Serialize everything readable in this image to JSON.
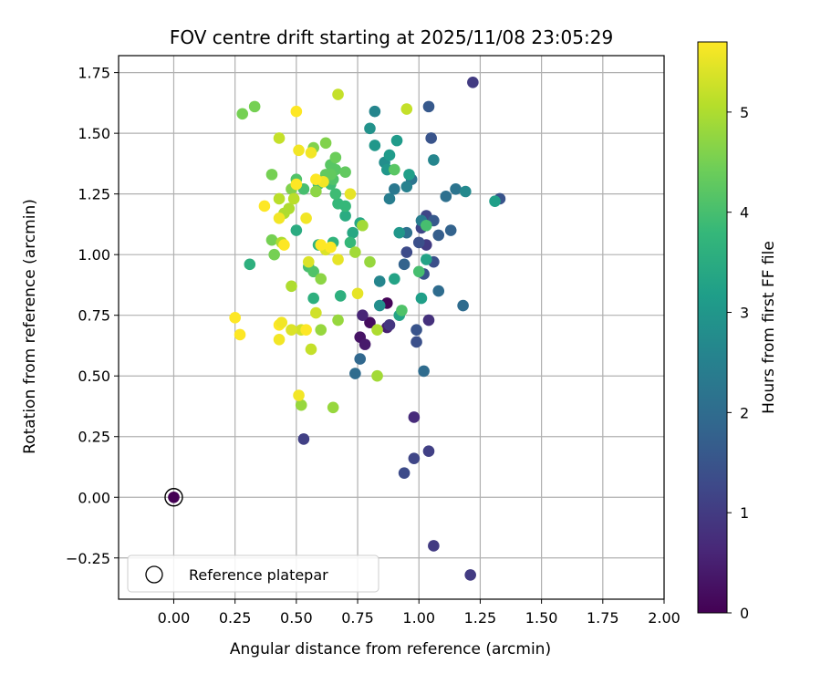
{
  "chart_data": {
    "type": "scatter",
    "title": "FOV centre drift starting at 2025/11/08 23:05:29",
    "xlabel": "Angular distance from reference (arcmin)",
    "ylabel": "Rotation from reference (arcmin)",
    "xlim": [
      -0.225,
      2.0
    ],
    "ylim": [
      -0.42,
      1.82
    ],
    "xticks": [
      0.0,
      0.25,
      0.5,
      0.75,
      1.0,
      1.25,
      1.5,
      1.75,
      2.0
    ],
    "xtick_labels": [
      "0.00",
      "0.25",
      "0.50",
      "0.75",
      "1.00",
      "1.25",
      "1.50",
      "1.75",
      "2.00"
    ],
    "yticks": [
      -0.25,
      0.0,
      0.25,
      0.5,
      0.75,
      1.0,
      1.25,
      1.5,
      1.75
    ],
    "ytick_labels": [
      "−0.25",
      "0.00",
      "0.25",
      "0.50",
      "0.75",
      "1.00",
      "1.25",
      "1.50",
      "1.75"
    ],
    "grid": true,
    "legend": {
      "position": "lower-left",
      "entries": [
        "Reference platepar"
      ]
    },
    "reference_point": {
      "x": 0.0,
      "y": 0.0
    },
    "colorbar": {
      "label": "Hours from first FF file",
      "range": [
        0,
        5.7
      ],
      "ticks": [
        0,
        1,
        2,
        3,
        4,
        5
      ],
      "tick_labels": [
        "0",
        "1",
        "2",
        "3",
        "4",
        "5"
      ],
      "colormap": "viridis"
    },
    "color_stops": [
      "#440154",
      "#482878",
      "#3e4989",
      "#31688e",
      "#26828e",
      "#1f9e89",
      "#35b779",
      "#6ece58",
      "#b5de2b",
      "#fde725"
    ],
    "points": [
      [
        0.0,
        0.0,
        0.0
      ],
      [
        0.87,
        0.8,
        0.05
      ],
      [
        0.8,
        0.72,
        0.2
      ],
      [
        0.76,
        0.66,
        0.3
      ],
      [
        0.78,
        0.63,
        0.4
      ],
      [
        0.87,
        0.7,
        0.5
      ],
      [
        0.77,
        0.75,
        0.6
      ],
      [
        0.98,
        0.33,
        0.7
      ],
      [
        1.04,
        0.73,
        0.8
      ],
      [
        0.88,
        0.71,
        0.9
      ],
      [
        1.03,
        1.04,
        1.0
      ],
      [
        1.22,
        1.71,
        1.0
      ],
      [
        1.06,
        -0.2,
        1.0
      ],
      [
        1.21,
        -0.32,
        1.0
      ],
      [
        0.53,
        0.24,
        1.1
      ],
      [
        1.04,
        0.19,
        1.1
      ],
      [
        0.98,
        0.16,
        1.2
      ],
      [
        0.94,
        0.1,
        1.3
      ],
      [
        1.01,
        1.11,
        1.2
      ],
      [
        1.03,
        1.16,
        1.2
      ],
      [
        0.95,
        1.01,
        1.3
      ],
      [
        1.0,
        1.05,
        1.4
      ],
      [
        0.99,
        0.64,
        1.4
      ],
      [
        0.99,
        0.69,
        1.5
      ],
      [
        1.06,
        0.97,
        1.4
      ],
      [
        1.02,
        0.92,
        1.5
      ],
      [
        1.05,
        1.48,
        1.5
      ],
      [
        1.04,
        1.61,
        1.6
      ],
      [
        1.33,
        1.23,
        1.5
      ],
      [
        1.06,
        1.14,
        1.6
      ],
      [
        1.08,
        1.08,
        1.7
      ],
      [
        0.94,
        0.96,
        1.8
      ],
      [
        1.13,
        1.1,
        1.8
      ],
      [
        0.76,
        0.57,
        1.9
      ],
      [
        0.74,
        0.51,
        2.0
      ],
      [
        1.08,
        0.85,
        2.0
      ],
      [
        1.18,
        0.79,
        2.0
      ],
      [
        1.02,
        0.52,
        2.0
      ],
      [
        1.11,
        1.24,
        2.1
      ],
      [
        1.15,
        1.27,
        2.2
      ],
      [
        0.95,
        1.09,
        2.1
      ],
      [
        0.97,
        1.31,
        2.2
      ],
      [
        0.9,
        1.27,
        2.3
      ],
      [
        0.88,
        1.23,
        2.4
      ],
      [
        1.01,
        1.14,
        2.4
      ],
      [
        0.95,
        1.28,
        2.5
      ],
      [
        0.82,
        1.59,
        2.6
      ],
      [
        0.84,
        0.89,
        2.6
      ],
      [
        1.06,
        1.39,
        2.6
      ],
      [
        1.19,
        1.26,
        2.7
      ],
      [
        0.84,
        0.79,
        2.8
      ],
      [
        0.86,
        1.38,
        2.8
      ],
      [
        0.8,
        1.52,
        2.9
      ],
      [
        0.87,
        1.35,
        3.0
      ],
      [
        0.92,
        1.09,
        3.0
      ],
      [
        0.82,
        1.45,
        3.0
      ],
      [
        0.88,
        1.41,
        3.1
      ],
      [
        0.91,
        1.47,
        3.1
      ],
      [
        0.96,
        1.33,
        3.2
      ],
      [
        1.31,
        1.22,
        3.2
      ],
      [
        1.01,
        0.82,
        3.2
      ],
      [
        0.9,
        0.9,
        3.3
      ],
      [
        0.92,
        0.75,
        3.3
      ],
      [
        1.03,
        0.98,
        3.3
      ],
      [
        0.76,
        1.13,
        3.4
      ],
      [
        0.73,
        1.09,
        3.4
      ],
      [
        0.7,
        1.16,
        3.5
      ],
      [
        0.5,
        1.1,
        3.5
      ],
      [
        0.31,
        0.96,
        3.6
      ],
      [
        0.68,
        0.83,
        3.6
      ],
      [
        0.57,
        0.82,
        3.6
      ],
      [
        0.59,
        1.04,
        3.7
      ],
      [
        0.65,
        1.05,
        3.7
      ],
      [
        0.72,
        1.05,
        3.8
      ],
      [
        0.7,
        1.2,
        3.8
      ],
      [
        0.67,
        1.21,
        3.8
      ],
      [
        0.66,
        1.25,
        3.9
      ],
      [
        0.64,
        1.29,
        3.9
      ],
      [
        0.59,
        1.29,
        4.0
      ],
      [
        0.53,
        1.27,
        4.0
      ],
      [
        0.5,
        1.31,
        4.1
      ],
      [
        0.65,
        1.31,
        4.1
      ],
      [
        0.66,
        1.35,
        4.2
      ],
      [
        0.64,
        1.37,
        4.2
      ],
      [
        0.64,
        1.33,
        4.3
      ],
      [
        0.7,
        1.34,
        4.3
      ],
      [
        0.55,
        0.95,
        4.0
      ],
      [
        0.57,
        0.93,
        4.1
      ],
      [
        1.0,
        0.93,
        4.0
      ],
      [
        1.03,
        1.12,
        4.0
      ],
      [
        0.93,
        0.77,
        4.1
      ],
      [
        0.9,
        1.35,
        4.2
      ],
      [
        0.62,
        1.33,
        4.3
      ],
      [
        0.66,
        1.4,
        4.4
      ],
      [
        0.28,
        1.58,
        4.5
      ],
      [
        0.33,
        1.61,
        4.5
      ],
      [
        0.4,
        1.06,
        4.5
      ],
      [
        0.41,
        1.0,
        4.5
      ],
      [
        0.4,
        1.33,
        4.5
      ],
      [
        0.48,
        1.27,
        4.6
      ],
      [
        0.62,
        1.46,
        4.6
      ],
      [
        0.57,
        1.44,
        4.6
      ],
      [
        0.58,
        1.26,
        4.7
      ],
      [
        0.6,
        0.9,
        4.7
      ],
      [
        0.65,
        0.37,
        4.8
      ],
      [
        0.52,
        0.38,
        4.8
      ],
      [
        0.6,
        0.69,
        4.8
      ],
      [
        0.67,
        0.73,
        4.8
      ],
      [
        0.83,
        0.5,
        4.9
      ],
      [
        0.8,
        0.97,
        4.8
      ],
      [
        0.74,
        1.01,
        4.9
      ],
      [
        0.77,
        1.12,
        4.9
      ],
      [
        0.83,
        0.69,
        5.0
      ],
      [
        0.48,
        0.87,
        5.0
      ],
      [
        0.44,
        1.05,
        5.0
      ],
      [
        0.45,
        1.17,
        5.0
      ],
      [
        0.47,
        1.19,
        5.0
      ],
      [
        0.49,
        1.23,
        5.1
      ],
      [
        0.43,
        1.23,
        5.1
      ],
      [
        0.43,
        1.48,
        5.2
      ],
      [
        0.67,
        1.66,
        5.2
      ],
      [
        0.95,
        1.6,
        5.2
      ],
      [
        0.56,
        0.61,
        5.2
      ],
      [
        0.58,
        0.76,
        5.3
      ],
      [
        0.52,
        0.69,
        5.3
      ],
      [
        0.48,
        0.69,
        5.4
      ],
      [
        0.55,
        0.97,
        5.4
      ],
      [
        0.62,
        1.02,
        5.4
      ],
      [
        0.67,
        0.98,
        5.5
      ],
      [
        0.75,
        0.84,
        5.5
      ],
      [
        0.72,
        1.25,
        5.5
      ],
      [
        0.61,
        1.3,
        5.6
      ],
      [
        0.51,
        1.43,
        5.6
      ],
      [
        0.56,
        1.42,
        5.6
      ],
      [
        0.5,
        1.59,
        5.7
      ],
      [
        0.37,
        1.2,
        5.7
      ],
      [
        0.43,
        1.15,
        5.6
      ],
      [
        0.54,
        1.15,
        5.6
      ],
      [
        0.45,
        1.04,
        5.7
      ],
      [
        0.25,
        0.74,
        5.7
      ],
      [
        0.27,
        0.67,
        5.7
      ],
      [
        0.43,
        0.71,
        5.7
      ],
      [
        0.43,
        0.65,
        5.6
      ],
      [
        0.44,
        0.72,
        5.6
      ],
      [
        0.51,
        0.42,
        5.6
      ],
      [
        0.54,
        0.69,
        5.7
      ],
      [
        0.6,
        1.04,
        5.7
      ],
      [
        0.64,
        1.03,
        5.7
      ],
      [
        0.5,
        1.29,
        5.7
      ],
      [
        0.58,
        1.31,
        5.7
      ]
    ]
  }
}
